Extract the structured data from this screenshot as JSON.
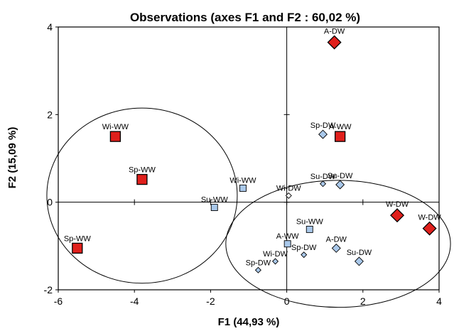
{
  "chart_data": {
    "type": "scatter",
    "title": "Observations (axes F1 and F2 : 60,02 %)",
    "xlabel": "F1 (44,93 %)",
    "ylabel": "F2 (15,09 %)",
    "xlim": [
      -6,
      4
    ],
    "ylim": [
      -2,
      4
    ],
    "xticks": [
      "-6",
      "-4",
      "-2",
      "0",
      "2",
      "4"
    ],
    "yticks": [
      "-2",
      "0",
      "2",
      "4"
    ],
    "colors": {
      "red": "#e0201c",
      "blue": "#a9c8ea",
      "black": "#000000"
    },
    "points": [
      {
        "label": "A-DW",
        "x": 1.25,
        "y": 3.65,
        "marker": "diamond",
        "size": "large",
        "color": "red"
      },
      {
        "label": "Sp-DW",
        "x": 0.95,
        "y": 1.55,
        "marker": "diamond",
        "size": "small",
        "color": "blue"
      },
      {
        "label": "A-WW",
        "x": 1.4,
        "y": 1.5,
        "marker": "square",
        "size": "large",
        "color": "red"
      },
      {
        "label": "Wi-WW",
        "x": -4.5,
        "y": 1.5,
        "marker": "square",
        "size": "large",
        "color": "red"
      },
      {
        "label": "Sp-WW",
        "x": -3.8,
        "y": 0.52,
        "marker": "square",
        "size": "large",
        "color": "red"
      },
      {
        "label": "Wi-WW",
        "x": -1.15,
        "y": 0.32,
        "marker": "square",
        "size": "small",
        "color": "blue"
      },
      {
        "label": "Su-WW",
        "x": -1.9,
        "y": -0.12,
        "marker": "square",
        "size": "small",
        "color": "blue"
      },
      {
        "label": "Wi-DW",
        "x": 0.05,
        "y": 0.15,
        "marker": "diamond",
        "size": "tiny",
        "color": "white"
      },
      {
        "label": "Su-DW",
        "x": 0.95,
        "y": 0.42,
        "marker": "diamond",
        "size": "tiny",
        "color": "blue"
      },
      {
        "label": "Su-DW",
        "x": 1.4,
        "y": 0.4,
        "marker": "diamond",
        "size": "small",
        "color": "blue"
      },
      {
        "label": "Sp-WW",
        "x": -5.5,
        "y": -1.05,
        "marker": "square",
        "size": "large",
        "color": "red"
      },
      {
        "label": "W-DW",
        "x": 2.9,
        "y": -0.3,
        "marker": "diamond",
        "size": "large",
        "color": "red"
      },
      {
        "label": "W-DW",
        "x": 3.75,
        "y": -0.6,
        "marker": "diamond",
        "size": "large",
        "color": "red"
      },
      {
        "label": "Su-WW",
        "x": 0.6,
        "y": -0.62,
        "marker": "square",
        "size": "small",
        "color": "blue"
      },
      {
        "label": "A-WW",
        "x": 0.02,
        "y": -0.95,
        "marker": "square",
        "size": "small",
        "color": "blue"
      },
      {
        "label": "A-DW",
        "x": 1.3,
        "y": -1.05,
        "marker": "diamond",
        "size": "small",
        "color": "blue"
      },
      {
        "label": "Wi-DW",
        "x": -0.3,
        "y": -1.35,
        "marker": "diamond",
        "size": "tiny",
        "color": "blue"
      },
      {
        "label": "Sp-DW",
        "x": 0.45,
        "y": -1.2,
        "marker": "diamond",
        "size": "tiny",
        "color": "blue"
      },
      {
        "label": "Su-DW",
        "x": 1.9,
        "y": -1.35,
        "marker": "diamond",
        "size": "small",
        "color": "blue"
      },
      {
        "label": "Sp-DW",
        "x": -0.75,
        "y": -1.55,
        "marker": "diamond",
        "size": "tiny",
        "color": "blue"
      }
    ],
    "ellipses": [
      {
        "cx": -3.8,
        "cy": 0.15,
        "rx": 2.5,
        "ry": 2.0
      },
      {
        "cx": 1.35,
        "cy": -0.95,
        "rx": 2.95,
        "ry": 1.45
      }
    ],
    "grid": false
  }
}
